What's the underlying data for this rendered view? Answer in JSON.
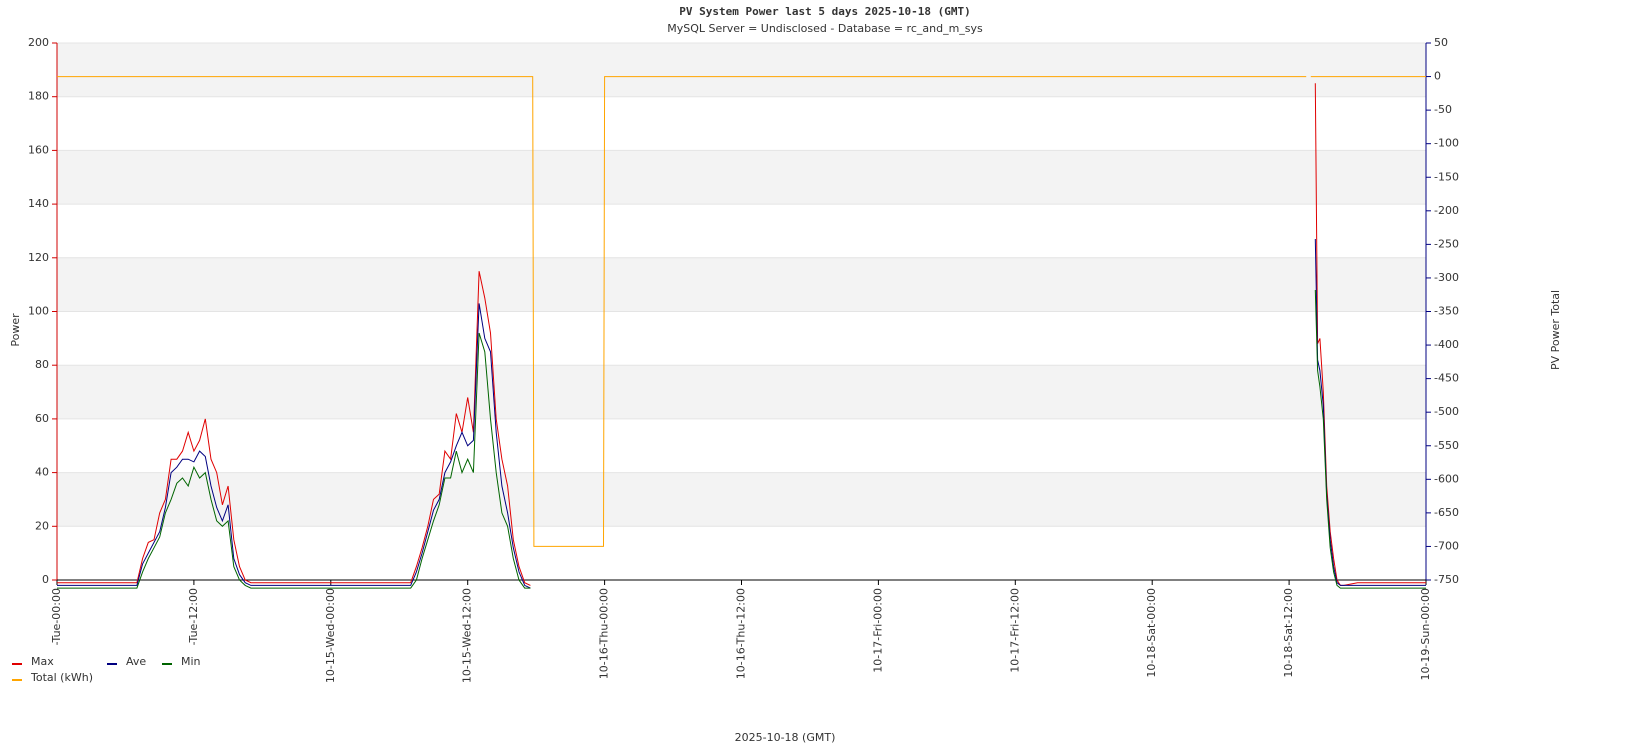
{
  "chart_data": {
    "type": "line",
    "title": "PV System Power last 5     days 2025-10-18 (GMT)",
    "subtitle": "MySQL Server = Undisclosed - Database = rc_and_m_sys",
    "x_label": "2025-10-18 (GMT)",
    "y_label": "Power",
    "y2_label": "PV Power Total",
    "xlim": [
      0,
      120
    ],
    "xticks": [
      {
        "value": 0,
        "label": "-Tue-00:00"
      },
      {
        "value": 12,
        "label": "-Tue-12:00"
      },
      {
        "value": 24,
        "label": "10-15-Wed-00:00"
      },
      {
        "value": 36,
        "label": "10-15-Wed-12:00"
      },
      {
        "value": 48,
        "label": "10-16-Thu-00:00"
      },
      {
        "value": 60,
        "label": "10-16-Thu-12:00"
      },
      {
        "value": 72,
        "label": "10-17-Fri-00:00"
      },
      {
        "value": 84,
        "label": "10-17-Fri-12:00"
      },
      {
        "value": 96,
        "label": "10-18-Sat-00:00"
      },
      {
        "value": 108,
        "label": "10-18-Sat-12:00"
      },
      {
        "value": 120,
        "label": "10-19-Sun-00:00"
      }
    ],
    "ylim": [
      0,
      200
    ],
    "yticks": [
      0,
      20,
      40,
      60,
      80,
      100,
      120,
      140,
      160,
      180,
      200
    ],
    "y2lim": [
      -750,
      50
    ],
    "y2ticks": [
      -750,
      -700,
      -650,
      -600,
      -550,
      -500,
      -450,
      -400,
      -350,
      -300,
      -250,
      -200,
      -150,
      -100,
      -50,
      0,
      50
    ],
    "grid": true,
    "legend": "bottom-left",
    "series": [
      {
        "name": "Max",
        "color": "#e00000",
        "x": [
          0,
          1,
          2,
          3,
          4,
          5,
          6,
          7,
          7.5,
          8,
          8.5,
          9,
          9.5,
          10,
          10.5,
          11,
          11.5,
          12,
          12.5,
          13,
          13.5,
          14,
          14.5,
          15,
          15.5,
          16,
          16.5,
          17,
          18,
          20,
          22,
          24,
          26,
          28,
          30,
          31,
          31.5,
          32,
          32.5,
          33,
          33.5,
          34,
          34.5,
          35,
          35.5,
          36,
          36.5,
          37,
          37.5,
          38,
          38.5,
          39,
          39.5,
          40,
          40.5,
          41,
          41.5,
          42,
          110.3,
          110.5,
          110.7,
          111,
          111.3,
          111.6,
          111.9,
          112.2,
          112.5,
          112.8,
          114,
          116,
          118,
          120
        ],
        "values": [
          -1,
          -1,
          -1,
          -1,
          -1,
          -1,
          -1,
          -1,
          8,
          14,
          15,
          25,
          30,
          45,
          45,
          48,
          55,
          48,
          52,
          60,
          45,
          40,
          28,
          35,
          15,
          5,
          0,
          -1,
          -1,
          -1,
          -1,
          -1,
          -1,
          -1,
          -1,
          -1,
          5,
          12,
          20,
          30,
          32,
          48,
          45,
          62,
          55,
          68,
          55,
          115,
          105,
          92,
          60,
          45,
          35,
          15,
          5,
          -1,
          -2,
          null,
          185,
          88,
          90,
          70,
          35,
          18,
          8,
          0,
          -2,
          -2,
          -1,
          -1,
          -1,
          -1
        ]
      },
      {
        "name": "Ave",
        "color": "#000080",
        "x": [
          0,
          1,
          2,
          3,
          4,
          5,
          6,
          7,
          7.5,
          8,
          8.5,
          9,
          9.5,
          10,
          10.5,
          11,
          11.5,
          12,
          12.5,
          13,
          13.5,
          14,
          14.5,
          15,
          15.5,
          16,
          16.5,
          17,
          18,
          20,
          22,
          24,
          26,
          28,
          30,
          31,
          31.5,
          32,
          32.5,
          33,
          33.5,
          34,
          34.5,
          35,
          35.5,
          36,
          36.5,
          37,
          37.5,
          38,
          38.5,
          39,
          39.5,
          40,
          40.5,
          41,
          41.5,
          42,
          110.3,
          110.5,
          110.7,
          111,
          111.3,
          111.6,
          111.9,
          112.2,
          112.5,
          112.8,
          114,
          116,
          118,
          120
        ],
        "values": [
          -2,
          -2,
          -2,
          -2,
          -2,
          -2,
          -2,
          -2,
          6,
          10,
          14,
          18,
          27,
          40,
          42,
          45,
          45,
          44,
          48,
          46,
          35,
          27,
          22,
          28,
          8,
          2,
          -1,
          -2,
          -2,
          -2,
          -2,
          -2,
          -2,
          -2,
          -2,
          -2,
          3,
          10,
          18,
          26,
          30,
          40,
          44,
          50,
          55,
          50,
          52,
          103,
          90,
          85,
          55,
          35,
          25,
          12,
          3,
          -2,
          -3,
          null,
          127,
          82,
          78,
          65,
          32,
          15,
          5,
          -1,
          -2,
          -2,
          -2,
          -2,
          -2,
          -2
        ]
      },
      {
        "name": "Min",
        "color": "#006400",
        "x": [
          0,
          1,
          2,
          3,
          4,
          5,
          6,
          7,
          7.5,
          8,
          8.5,
          9,
          9.5,
          10,
          10.5,
          11,
          11.5,
          12,
          12.5,
          13,
          13.5,
          14,
          14.5,
          15,
          15.5,
          16,
          16.5,
          17,
          18,
          20,
          22,
          24,
          26,
          28,
          30,
          31,
          31.5,
          32,
          32.5,
          33,
          33.5,
          34,
          34.5,
          35,
          35.5,
          36,
          36.5,
          37,
          37.5,
          38,
          38.5,
          39,
          39.5,
          40,
          40.5,
          41,
          41.5,
          42,
          110.3,
          110.5,
          110.7,
          111,
          111.3,
          111.6,
          111.9,
          112.2,
          112.5,
          112.8,
          114,
          116,
          118,
          120
        ],
        "values": [
          -3,
          -3,
          -3,
          -3,
          -3,
          -3,
          -3,
          -3,
          3,
          8,
          12,
          16,
          25,
          30,
          36,
          38,
          35,
          42,
          38,
          40,
          30,
          22,
          20,
          22,
          5,
          0,
          -2,
          -3,
          -3,
          -3,
          -3,
          -3,
          -3,
          -3,
          -3,
          -3,
          0,
          8,
          15,
          22,
          28,
          38,
          38,
          48,
          40,
          45,
          40,
          92,
          85,
          60,
          40,
          25,
          20,
          8,
          0,
          -3,
          -3,
          null,
          108,
          78,
          72,
          60,
          30,
          12,
          3,
          -2,
          -3,
          -3,
          -3,
          -3,
          -3,
          -3
        ]
      },
      {
        "name": "Total (kWh)",
        "color": "#ffa500",
        "axis": "y2",
        "x": [
          0,
          41.7,
          41.8,
          47.9,
          48.0,
          109.5,
          109.7,
          109.9,
          120
        ],
        "values": [
          0,
          0,
          -700,
          -700,
          0,
          0,
          null,
          0,
          0
        ]
      }
    ]
  }
}
